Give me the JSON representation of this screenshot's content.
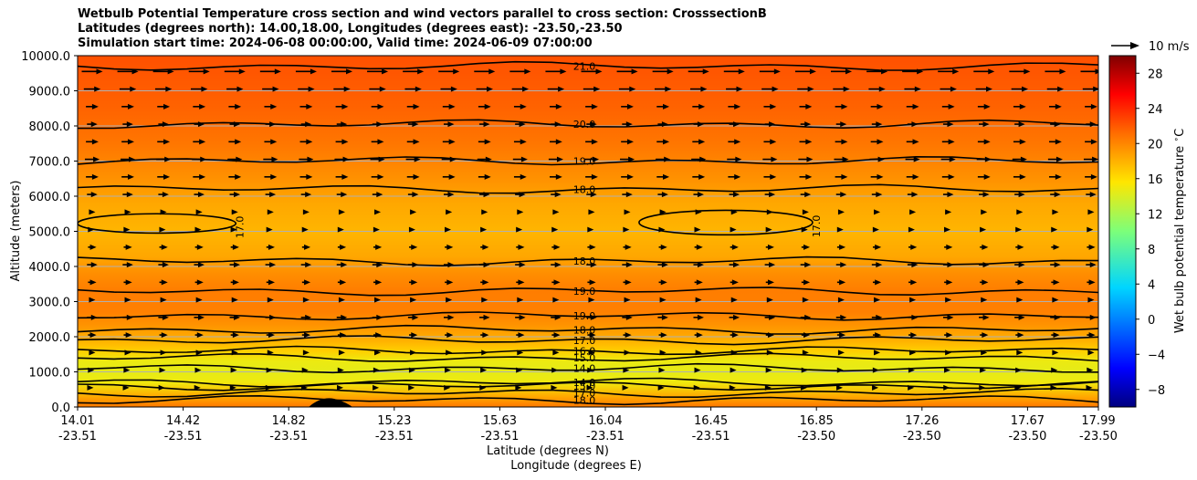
{
  "title": {
    "line1": "Wetbulb Potential Temperature cross section and wind vectors parallel to cross section: CrosssectionB",
    "line2": "Latitudes (degrees north): 14.00,18.00, Longitudes (degrees east): -23.50,-23.50",
    "line3": "Simulation start time: 2024-06-08 00:00:00, Valid time: 2024-06-09 07:00:00"
  },
  "chart_data": {
    "type": "heatmap",
    "xlabel_line1": "Latitude (degrees N)",
    "xlabel_line2": "Longitude (degrees E)",
    "ylabel": "Altitude (meters)",
    "ylim": [
      0,
      10000
    ],
    "y_ticks": [
      "0.0",
      "1000.0",
      "2000.0",
      "3000.0",
      "4000.0",
      "5000.0",
      "6000.0",
      "7000.0",
      "8000.0",
      "9000.0",
      "10000.0"
    ],
    "x_ticks": [
      {
        "lat": "14.01",
        "lon": "-23.51"
      },
      {
        "lat": "14.42",
        "lon": "-23.51"
      },
      {
        "lat": "14.82",
        "lon": "-23.51"
      },
      {
        "lat": "15.23",
        "lon": "-23.51"
      },
      {
        "lat": "15.63",
        "lon": "-23.51"
      },
      {
        "lat": "16.04",
        "lon": "-23.51"
      },
      {
        "lat": "16.45",
        "lon": "-23.51"
      },
      {
        "lat": "16.85",
        "lon": "-23.50"
      },
      {
        "lat": "17.26",
        "lon": "-23.50"
      },
      {
        "lat": "17.67",
        "lon": "-23.50"
      },
      {
        "lat": "17.99",
        "lon": "-23.50"
      }
    ],
    "colorbar": {
      "label": "Wet bulb potential temperature $^\\circ$C",
      "range": [
        -10,
        30
      ],
      "ticks": [
        "−8",
        "−4",
        "0",
        "4",
        "8",
        "12",
        "16",
        "20",
        "24",
        "28"
      ],
      "tick_values": [
        -8,
        -4,
        0,
        4,
        8,
        12,
        16,
        20,
        24,
        28
      ]
    },
    "quiver_key": {
      "label": "10 m/s"
    },
    "profile": [
      {
        "alt": 0,
        "value": 19.5
      },
      {
        "alt": 300,
        "value": 17.5
      },
      {
        "alt": 700,
        "value": 14.2
      },
      {
        "alt": 1000,
        "value": 13.6
      },
      {
        "alt": 1300,
        "value": 14.0
      },
      {
        "alt": 1600,
        "value": 16.0
      },
      {
        "alt": 1900,
        "value": 17.2
      },
      {
        "alt": 2300,
        "value": 18.3
      },
      {
        "alt": 2700,
        "value": 19.2
      },
      {
        "alt": 3300,
        "value": 19.3
      },
      {
        "alt": 3800,
        "value": 18.6
      },
      {
        "alt": 4300,
        "value": 17.6
      },
      {
        "alt": 5000,
        "value": 17.0
      },
      {
        "alt": 5800,
        "value": 17.6
      },
      {
        "alt": 6500,
        "value": 18.5
      },
      {
        "alt": 7500,
        "value": 19.6
      },
      {
        "alt": 8500,
        "value": 20.4
      },
      {
        "alt": 10000,
        "value": 21.3
      }
    ],
    "contours": [
      {
        "label": "21.0",
        "alt": 9700
      },
      {
        "label": "20.0",
        "alt": 8050
      },
      {
        "label": "19.0",
        "alt": 7000
      },
      {
        "label": "18.0",
        "alt": 6200
      },
      {
        "label": "18.0",
        "alt": 4150
      },
      {
        "label": "19.0",
        "alt": 3300
      },
      {
        "label": "19.0",
        "alt": 2600
      },
      {
        "label": "18.0",
        "alt": 2200
      },
      {
        "label": "17.0",
        "alt": 1900
      },
      {
        "label": "16.0",
        "alt": 1600
      },
      {
        "label": "15.0",
        "alt": 1400
      },
      {
        "label": "14.0",
        "alt": 1100
      },
      {
        "label": "14.0",
        "alt": 700
      },
      {
        "label": "15.0",
        "alt": 600
      },
      {
        "label": "17.0",
        "alt": 400
      },
      {
        "label": "18.0",
        "alt": 200
      }
    ],
    "closed_contours": [
      {
        "label": "17.0",
        "x_range": [
          0.0,
          0.155
        ],
        "alt_range": [
          4950,
          5500
        ]
      },
      {
        "label": "17.0",
        "x_range": [
          0.55,
          0.72
        ],
        "alt_range": [
          4900,
          5600
        ]
      }
    ],
    "wind_arrows": {
      "direction": "east",
      "levels": [
        {
          "alt": 9550,
          "speed": 10
        },
        {
          "alt": 9050,
          "speed": 8
        },
        {
          "alt": 8550,
          "speed": 6
        },
        {
          "alt": 8050,
          "speed": 5
        },
        {
          "alt": 7550,
          "speed": 6
        },
        {
          "alt": 7050,
          "speed": 7
        },
        {
          "alt": 6550,
          "speed": 6
        },
        {
          "alt": 6050,
          "speed": 5
        },
        {
          "alt": 5550,
          "speed": 3
        },
        {
          "alt": 5050,
          "speed": 2
        },
        {
          "alt": 4550,
          "speed": 4
        },
        {
          "alt": 4050,
          "speed": 5
        },
        {
          "alt": 3550,
          "speed": 4
        },
        {
          "alt": 3050,
          "speed": 3
        },
        {
          "alt": 2550,
          "speed": 5
        },
        {
          "alt": 2050,
          "speed": 4
        },
        {
          "alt": 1550,
          "speed": 3
        },
        {
          "alt": 1050,
          "speed": 2
        },
        {
          "alt": 550,
          "speed": 1
        }
      ]
    }
  }
}
